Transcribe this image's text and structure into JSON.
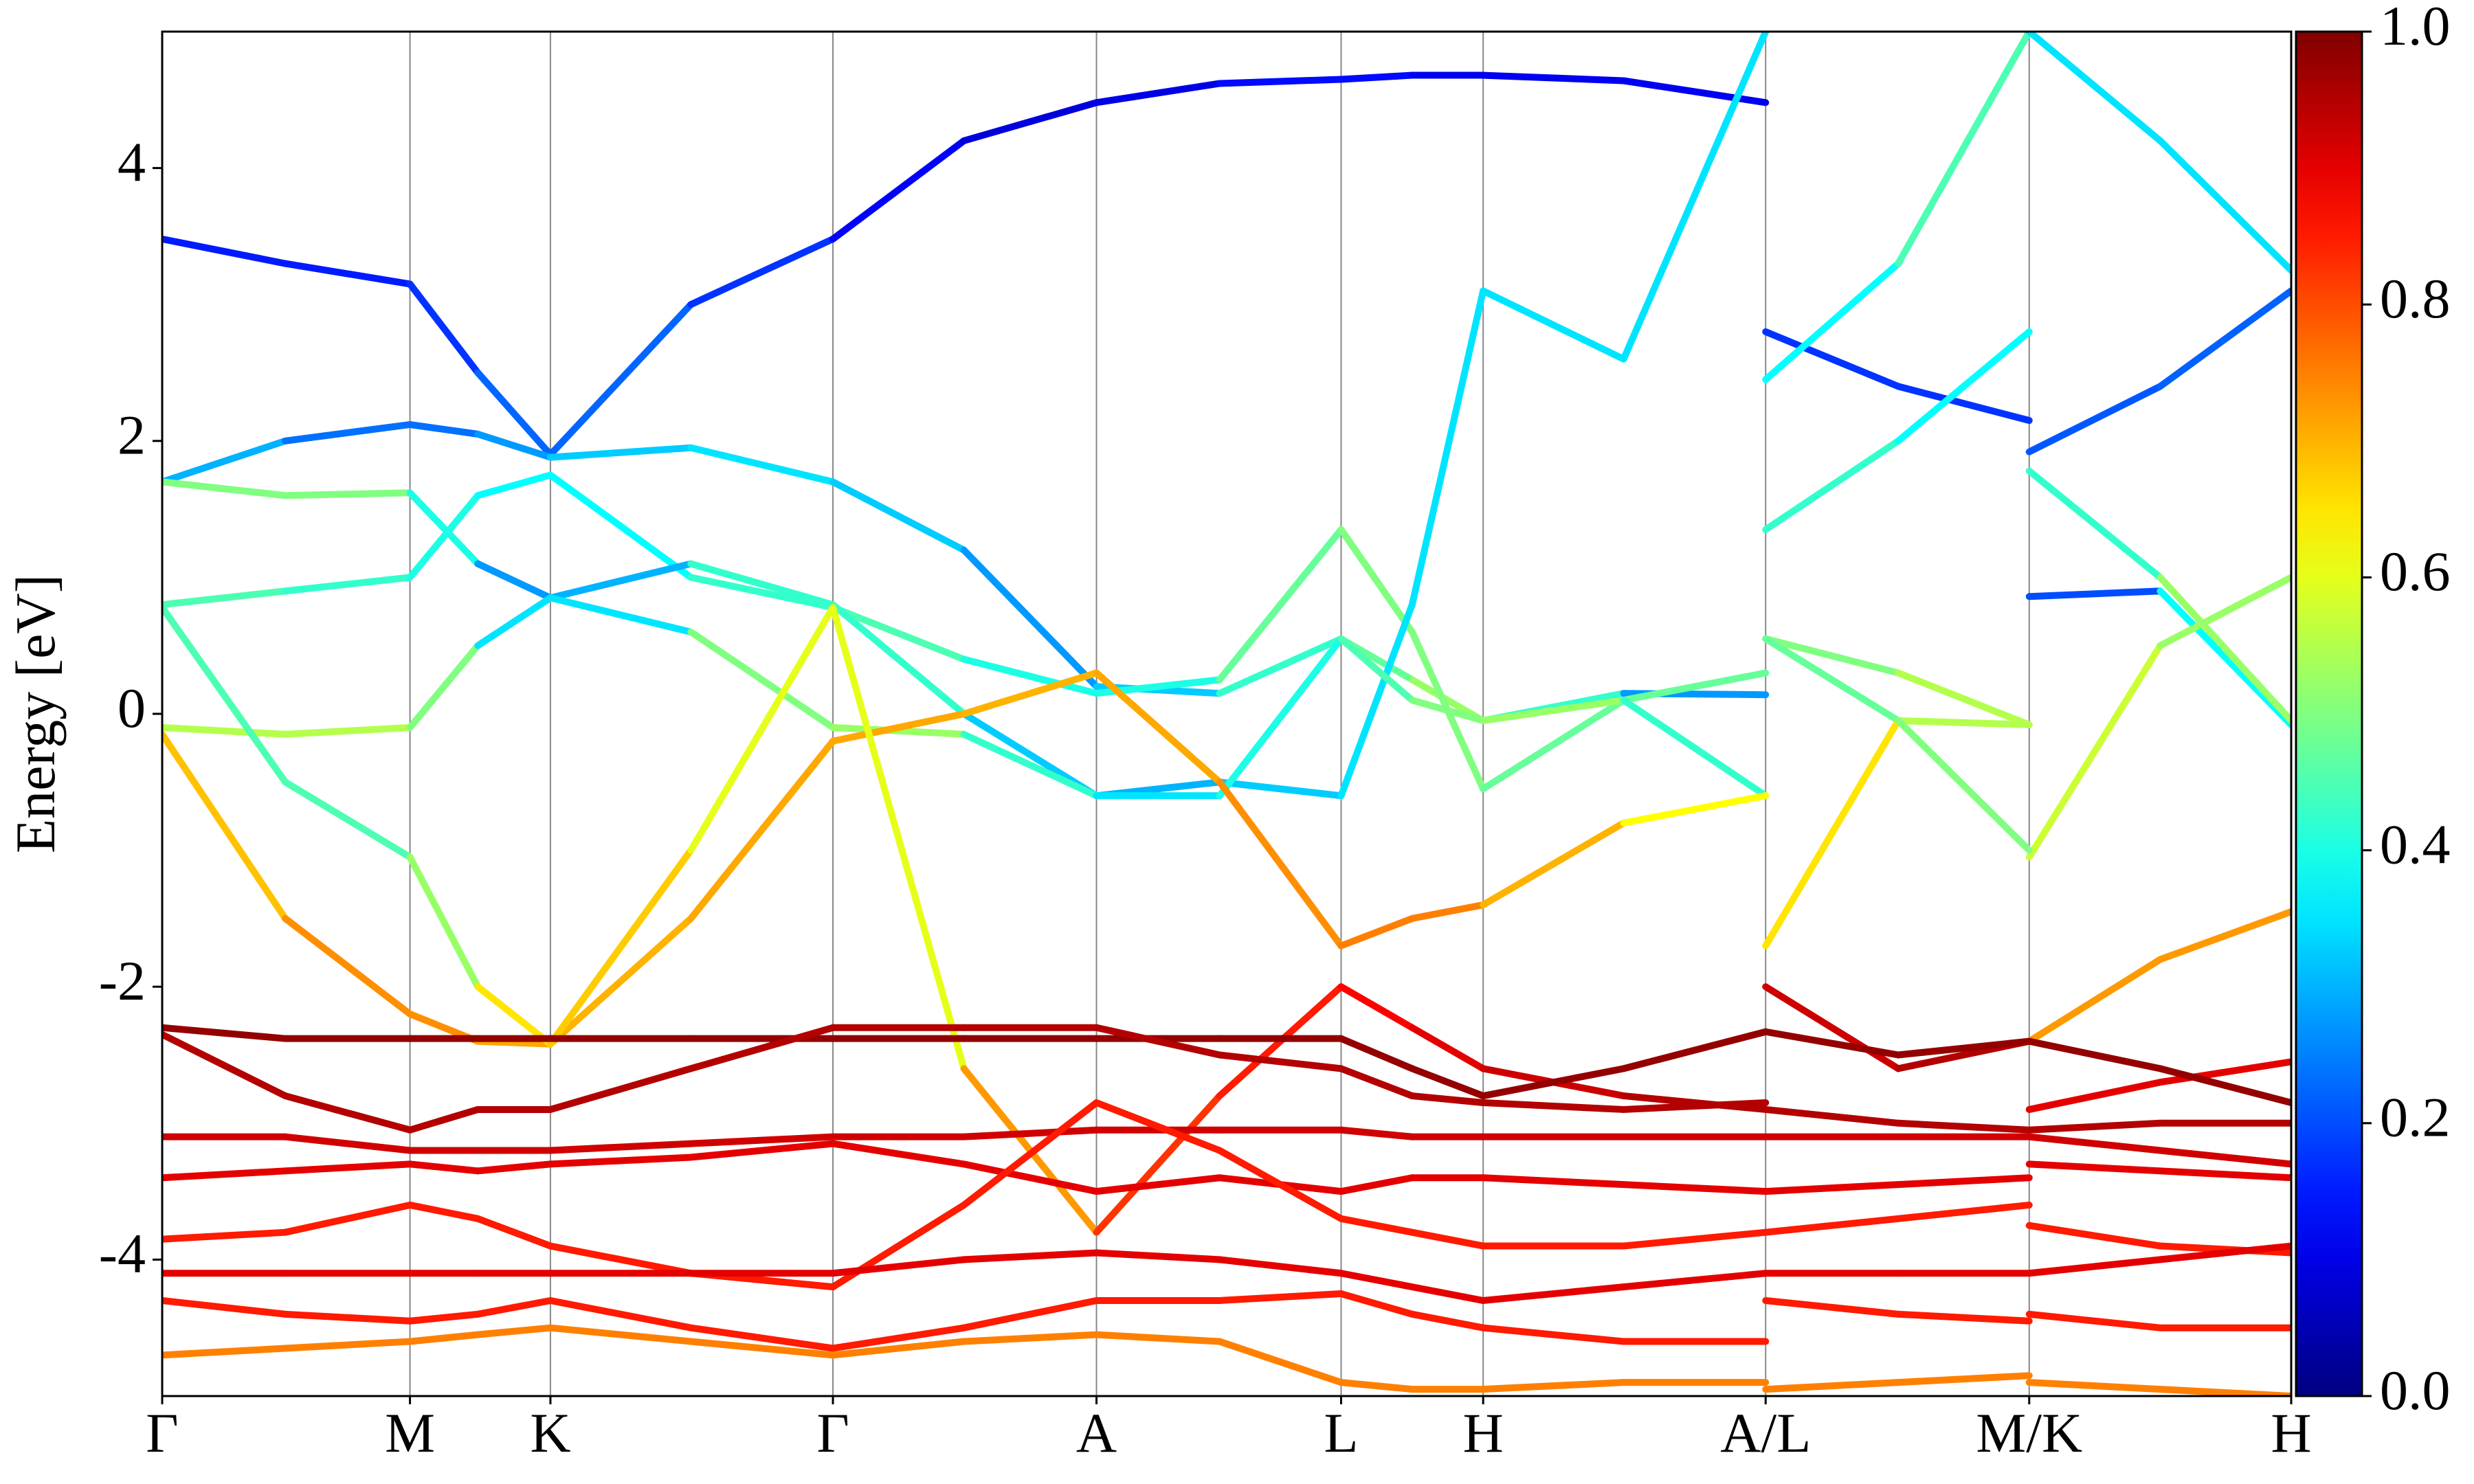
{
  "chart_data": {
    "type": "band",
    "ylabel": "Energy [eV]",
    "colormap": "jet",
    "xlim": [
      0,
      1349
    ],
    "ylim": [
      -5,
      5
    ],
    "xticks": [
      {
        "value": 0,
        "label": "Γ"
      },
      {
        "value": 157,
        "label": "M"
      },
      {
        "value": 246,
        "label": "K"
      },
      {
        "value": 425,
        "label": "Γ"
      },
      {
        "value": 592,
        "label": "A"
      },
      {
        "value": 747,
        "label": "L"
      },
      {
        "value": 837,
        "label": "H"
      },
      {
        "value": 1016,
        "label": "A/L"
      },
      {
        "value": 1183,
        "label": "M/K"
      },
      {
        "value": 1349,
        "label": "H"
      }
    ],
    "yticks": [
      -4,
      -2,
      0,
      2,
      4
    ],
    "clim": [
      0,
      1
    ],
    "cticks": [
      {
        "value": 0,
        "label": "0.0"
      },
      0.2,
      0.4,
      0.6,
      0.8,
      {
        "value": 1,
        "label": "1.0"
      }
    ],
    "x": [
      0,
      78,
      157,
      200,
      246,
      335,
      425,
      508,
      592,
      670,
      747,
      792,
      837,
      926,
      1016,
      1016,
      1016,
      1100,
      1183,
      1183,
      1183,
      1266,
      1349
    ],
    "series": [
      {
        "values": [
          3.48,
          3.3,
          3.15,
          2.5,
          1.9,
          3.0,
          3.48,
          4.2,
          4.48,
          4.62,
          4.65,
          4.68,
          4.68,
          4.64,
          4.48,
          null,
          2.8,
          2.4,
          2.15,
          null,
          1.92,
          2.4,
          3.1
        ],
        "weights": [
          0.15,
          0.15,
          0.15,
          0.2,
          0.25,
          0.2,
          0.15,
          0.1,
          0.08,
          0.12,
          0.15,
          0.12,
          0.1,
          0.12,
          0.1,
          null,
          0.15,
          0.2,
          0.15,
          null,
          0.2,
          0.22,
          0.22
        ]
      },
      {
        "values": [
          1.7,
          2.0,
          2.12,
          2.05,
          1.88,
          1.95,
          1.7,
          1.2,
          0.2,
          0.15,
          0.55,
          0.25,
          -0.05,
          0.15,
          0.14,
          null,
          0.55,
          0.3,
          -0.08,
          null,
          0.86,
          0.9,
          -0.08
        ],
        "weights": [
          0.35,
          0.25,
          0.22,
          0.25,
          0.3,
          0.35,
          0.35,
          0.3,
          0.25,
          0.4,
          0.45,
          0.5,
          0.55,
          0.3,
          0.25,
          null,
          0.5,
          0.5,
          0.6,
          null,
          0.2,
          0.2,
          0.55
        ]
      },
      {
        "values": [
          0.8,
          0.9,
          1.0,
          1.6,
          1.75,
          1.0,
          0.78,
          0.4,
          0.15,
          0.25,
          1.35,
          0.6,
          -0.55,
          0.1,
          0.3,
          null,
          1.35,
          2.0,
          2.8,
          null,
          1.78,
          1.0,
          -0.05
        ],
        "weights": [
          0.45,
          0.45,
          0.4,
          0.4,
          0.35,
          0.4,
          0.45,
          0.45,
          0.35,
          0.45,
          0.5,
          0.5,
          0.5,
          0.45,
          0.5,
          null,
          0.45,
          0.4,
          0.35,
          null,
          0.35,
          0.5,
          0.55
        ]
      },
      {
        "values": [
          1.7,
          1.6,
          1.62,
          1.1,
          0.85,
          1.1,
          0.8,
          0.0,
          -0.6,
          -0.5,
          -0.6,
          0.8,
          3.1,
          2.6,
          5.0,
          null,
          2.45,
          3.3,
          5.0,
          null,
          5.0,
          4.2,
          3.25
        ],
        "weights": [
          0.5,
          0.5,
          0.5,
          0.3,
          0.25,
          0.35,
          0.5,
          0.35,
          0.3,
          0.3,
          0.35,
          0.35,
          0.35,
          0.35,
          0.35,
          null,
          0.35,
          0.4,
          0.5,
          null,
          0.35,
          0.35,
          0.35
        ]
      },
      {
        "values": [
          -0.1,
          -0.15,
          -0.1,
          0.5,
          0.85,
          0.6,
          -0.1,
          -0.15,
          -0.6,
          -0.6,
          0.55,
          0.1,
          -0.05,
          0.1,
          -0.6,
          null,
          0.55,
          -0.05,
          -0.08,
          null,
          -1.05,
          0.5,
          1.0
        ],
        "weights": [
          0.55,
          0.55,
          0.55,
          0.45,
          0.25,
          0.45,
          0.55,
          0.5,
          0.35,
          0.35,
          0.45,
          0.45,
          0.55,
          0.5,
          0.35,
          null,
          0.45,
          0.5,
          0.6,
          null,
          0.6,
          0.55,
          0.5
        ]
      },
      {
        "values": [
          -0.15,
          -1.5,
          -2.2,
          -2.4,
          -2.42,
          -1.5,
          -0.2,
          0.0,
          0.3,
          -0.5,
          -1.7,
          -1.5,
          -1.4,
          -0.8,
          -0.6,
          null,
          -1.7,
          -0.05,
          -1.0,
          null,
          -2.4,
          -1.8,
          -1.45
        ],
        "weights": [
          0.65,
          0.72,
          0.75,
          0.72,
          0.7,
          0.7,
          0.72,
          0.7,
          0.7,
          0.72,
          0.75,
          0.75,
          0.75,
          0.65,
          0.6,
          null,
          0.75,
          0.55,
          0.45,
          null,
          0.75,
          0.7,
          0.75
        ]
      },
      {
        "values": [
          0.78,
          -0.5,
          -1.05,
          -2.0,
          -2.42,
          -1.0,
          0.78,
          -2.6,
          -3.8,
          -2.8,
          -2.0,
          -2.3,
          -2.6,
          -2.8,
          -2.9,
          null,
          -2.0,
          -2.6,
          -2.4,
          null,
          -2.9,
          -2.7,
          -2.55
        ],
        "weights": [
          0.45,
          0.45,
          0.45,
          0.6,
          0.7,
          0.65,
          0.55,
          0.65,
          0.8,
          0.85,
          0.85,
          0.9,
          0.9,
          0.95,
          0.95,
          null,
          0.9,
          0.95,
          0.95,
          null,
          0.9,
          0.9,
          0.9
        ]
      },
      {
        "values": [
          -2.3,
          -2.38,
          -2.38,
          -2.38,
          -2.38,
          -2.38,
          -2.38,
          -2.38,
          -2.38,
          -2.38,
          -2.38,
          -2.6,
          -2.8,
          -2.6,
          -2.33,
          null,
          -2.33,
          -2.5,
          -2.4,
          null,
          -2.4,
          -2.6,
          -2.85
        ],
        "weights": [
          0.98,
          0.98,
          0.98,
          0.98,
          0.98,
          0.98,
          0.98,
          0.98,
          0.98,
          0.98,
          0.98,
          0.98,
          0.98,
          0.98,
          0.98,
          null,
          0.98,
          0.98,
          0.98,
          null,
          0.98,
          0.98,
          0.98
        ]
      },
      {
        "values": [
          -2.35,
          -2.8,
          -3.05,
          -2.9,
          -2.9,
          -2.6,
          -2.3,
          -2.3,
          -2.3,
          -2.5,
          -2.6,
          -2.8,
          -2.85,
          -2.9,
          -2.85,
          null,
          -2.9,
          -3.0,
          -3.05,
          null,
          -3.05,
          -3.0,
          -3.0
        ],
        "weights": [
          0.95,
          0.95,
          0.95,
          0.95,
          0.95,
          0.95,
          0.95,
          0.95,
          0.95,
          0.95,
          0.95,
          0.95,
          0.95,
          0.95,
          0.95,
          null,
          0.95,
          0.95,
          0.95,
          null,
          0.95,
          0.95,
          0.95
        ]
      },
      {
        "values": [
          -3.1,
          -3.1,
          -3.2,
          -3.2,
          -3.2,
          -3.15,
          -3.1,
          -3.1,
          -3.05,
          -3.05,
          -3.05,
          -3.1,
          -3.1,
          -3.1,
          -3.1,
          null,
          -3.1,
          -3.1,
          -3.1,
          null,
          -3.1,
          -3.2,
          -3.3
        ],
        "weights": [
          0.92,
          0.92,
          0.92,
          0.92,
          0.92,
          0.92,
          0.92,
          0.92,
          0.92,
          0.92,
          0.92,
          0.92,
          0.92,
          0.92,
          0.92,
          null,
          0.92,
          0.92,
          0.92,
          null,
          0.92,
          0.92,
          0.92
        ]
      },
      {
        "values": [
          -3.4,
          -3.35,
          -3.3,
          -3.35,
          -3.3,
          -3.25,
          -3.15,
          -3.3,
          -3.5,
          -3.4,
          -3.5,
          -3.4,
          -3.4,
          -3.45,
          -3.5,
          null,
          -3.5,
          -3.45,
          -3.4,
          null,
          -3.3,
          -3.35,
          -3.4
        ],
        "weights": [
          0.9,
          0.9,
          0.9,
          0.9,
          0.9,
          0.9,
          0.9,
          0.9,
          0.9,
          0.9,
          0.9,
          0.9,
          0.9,
          0.9,
          0.9,
          null,
          0.9,
          0.9,
          0.9,
          null,
          0.9,
          0.9,
          0.9
        ]
      },
      {
        "values": [
          -3.85,
          -3.8,
          -3.6,
          -3.7,
          -3.9,
          -4.1,
          -4.2,
          -3.6,
          -2.85,
          -3.2,
          -3.7,
          -3.8,
          -3.9,
          -3.9,
          -3.8,
          null,
          -3.8,
          -3.7,
          -3.6,
          null,
          -3.75,
          -3.9,
          -3.95
        ],
        "weights": [
          0.85,
          0.85,
          0.85,
          0.85,
          0.85,
          0.85,
          0.85,
          0.85,
          0.85,
          0.85,
          0.85,
          0.85,
          0.85,
          0.85,
          0.85,
          null,
          0.85,
          0.85,
          0.85,
          null,
          0.85,
          0.85,
          0.85
        ]
      },
      {
        "values": [
          -4.1,
          -4.1,
          -4.1,
          -4.1,
          -4.1,
          -4.1,
          -4.1,
          -4.0,
          -3.95,
          -4.0,
          -4.1,
          -4.2,
          -4.3,
          -4.2,
          -4.1,
          null,
          -4.1,
          -4.1,
          -4.1,
          null,
          -4.1,
          -4.0,
          -3.9
        ],
        "weights": [
          0.9,
          0.9,
          0.9,
          0.9,
          0.9,
          0.9,
          0.9,
          0.9,
          0.9,
          0.9,
          0.9,
          0.9,
          0.9,
          0.9,
          0.9,
          null,
          0.9,
          0.9,
          0.9,
          null,
          0.9,
          0.9,
          0.9
        ]
      },
      {
        "values": [
          -4.3,
          -4.4,
          -4.45,
          -4.4,
          -4.3,
          -4.5,
          -4.65,
          -4.5,
          -4.3,
          -4.3,
          -4.25,
          -4.4,
          -4.5,
          -4.6,
          -4.6,
          null,
          -4.3,
          -4.4,
          -4.45,
          null,
          -4.4,
          -4.5,
          -4.5
        ],
        "weights": [
          0.85,
          0.85,
          0.85,
          0.85,
          0.85,
          0.85,
          0.85,
          0.85,
          0.85,
          0.85,
          0.85,
          0.85,
          0.85,
          0.85,
          0.85,
          null,
          0.85,
          0.85,
          0.85,
          null,
          0.85,
          0.85,
          0.85
        ]
      },
      {
        "values": [
          -4.7,
          -4.65,
          -4.6,
          -4.55,
          -4.5,
          -4.6,
          -4.7,
          -4.6,
          -4.55,
          -4.6,
          -4.9,
          -4.95,
          -4.95,
          -4.9,
          -4.9,
          null,
          -4.95,
          -4.9,
          -4.85,
          null,
          -4.9,
          -4.95,
          -5.0
        ],
        "weights": [
          0.75,
          0.75,
          0.75,
          0.75,
          0.75,
          0.75,
          0.75,
          0.75,
          0.75,
          0.75,
          0.75,
          0.75,
          0.75,
          0.75,
          0.75,
          null,
          0.75,
          0.75,
          0.75,
          null,
          0.75,
          0.75,
          0.75
        ]
      }
    ]
  }
}
